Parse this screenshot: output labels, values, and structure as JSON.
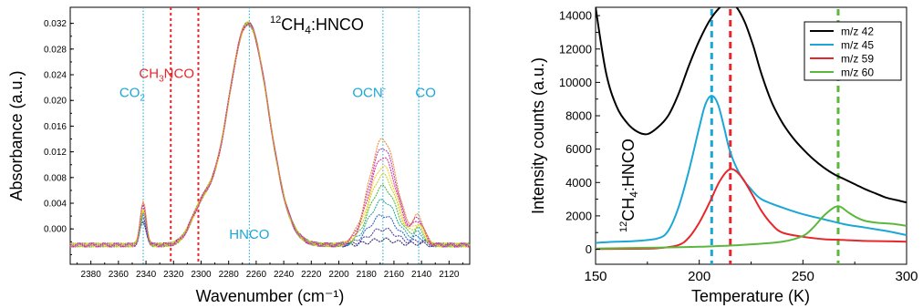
{
  "colors": {
    "blue": "#1aa7d8",
    "red": "#e8262b",
    "black": "#000000",
    "green": "#5cb83c",
    "darkred": "#d1161f"
  },
  "chart_data": [
    {
      "type": "line",
      "title": "12CH4:HNCO",
      "title_parts": {
        "sup": "12",
        "main1": "CH",
        "sub": "4",
        "main2": ":HNCO"
      },
      "xlabel": "Wavenumber (cm⁻¹)",
      "ylabel": "Absorbance (a.u.)",
      "xlim": [
        2395,
        2105
      ],
      "ylim": [
        -0.0055,
        0.0345
      ],
      "x_inverted": true,
      "grid": false,
      "xticks": [
        2380,
        2360,
        2340,
        2320,
        2300,
        2280,
        2260,
        2240,
        2220,
        2200,
        2180,
        2160,
        2140,
        2120
      ],
      "yticks": [
        0.0,
        0.004,
        0.008,
        0.012,
        0.016,
        0.02,
        0.024,
        0.028,
        0.032
      ],
      "ytick_labels": [
        "0.000",
        "0.004",
        "0.008",
        "0.012",
        "0.016",
        "0.020",
        "0.024",
        "0.028",
        "0.032"
      ],
      "ytick_extra": [
        {
          "value": -0.002,
          "label": ""
        }
      ],
      "reference_lines": [
        {
          "x": 2342,
          "color": "blue",
          "style": "dotted"
        },
        {
          "x": 2322,
          "color": "red",
          "style": "dotted"
        },
        {
          "x": 2302,
          "color": "red",
          "style": "dotted"
        },
        {
          "x": 2265,
          "color": "blue",
          "style": "dotted"
        },
        {
          "x": 2168,
          "color": "blue",
          "style": "dotted"
        },
        {
          "x": 2142,
          "color": "blue",
          "style": "dotted"
        }
      ],
      "annotations": [
        {
          "text": "CO",
          "sub": "2",
          "x": 2350,
          "y": 0.0205,
          "color": "blue"
        },
        {
          "text": "CH",
          "sub": "3",
          "rest": "NCO",
          "x": 2325,
          "y": 0.0235,
          "color": "red"
        },
        {
          "text": "HNCO",
          "x": 2265,
          "y": -0.0015,
          "color": "blue"
        },
        {
          "text": "OCN",
          "sup": "-",
          "x": 2178,
          "y": 0.0205,
          "color": "blue"
        },
        {
          "text": "CO",
          "x": 2137,
          "y": 0.0205,
          "color": "blue"
        }
      ],
      "series": [
        {
          "color": "#2a2a6a",
          "scale": 0.05,
          "base": 0.0335
        },
        {
          "color": "#4f3fa0",
          "scale": 0.15,
          "base": 0.0335
        },
        {
          "color": "#2c66c8",
          "scale": 0.28,
          "base": 0.0335
        },
        {
          "color": "#26a8a0",
          "scale": 0.42,
          "base": 0.0335
        },
        {
          "color": "#54b848",
          "scale": 0.55,
          "base": 0.0335
        },
        {
          "color": "#c8d21e",
          "scale": 0.66,
          "base": 0.0335
        },
        {
          "color": "#f4d020",
          "scale": 0.74,
          "base": 0.0335
        },
        {
          "color": "#e0309a",
          "scale": 0.83,
          "base": 0.0335
        },
        {
          "color": "#b040c0",
          "scale": 0.92,
          "base": 0.0335
        },
        {
          "color": "#f08a30",
          "scale": 1.0,
          "base": 0.0335
        }
      ],
      "peaks": {
        "co2": {
          "x": 2342,
          "amp": 0.0065,
          "w": 2.2
        },
        "hnco": {
          "x": 2266,
          "amp": 0.0345,
          "w": 15
        },
        "shoulder": {
          "x": 2300,
          "amp": 0.0045,
          "w": 8
        },
        "ocn": {
          "x": 2168,
          "amp": 0.0165,
          "w": 10
        },
        "co": {
          "x": 2142,
          "amp": 0.004,
          "w": 4
        },
        "baseline": -0.0025
      }
    },
    {
      "type": "line",
      "xlabel": "Temperature (K)",
      "ylabel": "Intensity counts (a.u.)",
      "inner_label": {
        "sup": "12",
        "main1": "CH",
        "sub": "4",
        "main2": ":HNCO"
      },
      "xlim": [
        150,
        300
      ],
      "ylim": [
        -900,
        14500
      ],
      "grid": false,
      "xticks": [
        150,
        200,
        250,
        300
      ],
      "yticks": [
        0,
        2000,
        4000,
        6000,
        8000,
        10000,
        12000,
        14000
      ],
      "legend_position": "top-right",
      "legend": [
        "m/z 42",
        "m/z 45",
        "m/z 59",
        "m/z 60"
      ],
      "reference_lines": [
        {
          "x": 206,
          "color": "blue",
          "style": "dashed"
        },
        {
          "x": 215,
          "color": "red",
          "style": "dashed"
        },
        {
          "x": 267,
          "color": "green",
          "style": "dashed"
        }
      ],
      "series": [
        {
          "name": "m/z 42",
          "color": "black",
          "x": [
            150,
            155,
            160,
            165,
            170,
            175,
            180,
            185,
            190,
            195,
            200,
            205,
            210,
            214,
            218,
            222,
            226,
            230,
            235,
            240,
            245,
            250,
            255,
            260,
            265,
            270,
            275,
            280,
            285,
            290,
            295,
            300
          ],
          "y": [
            14500,
            10600,
            8600,
            7600,
            7050,
            6900,
            7300,
            8000,
            9300,
            11000,
            12500,
            13700,
            14500,
            14800,
            14500,
            13600,
            12200,
            10500,
            8800,
            7600,
            6700,
            6000,
            5400,
            4900,
            4500,
            4200,
            3900,
            3600,
            3350,
            3100,
            2950,
            2800
          ]
        },
        {
          "name": "m/z 45",
          "color": "blue",
          "x": [
            150,
            160,
            170,
            180,
            185,
            190,
            195,
            200,
            203,
            206,
            209,
            212,
            215,
            220,
            225,
            230,
            240,
            250,
            260,
            270,
            280,
            290,
            300
          ],
          "y": [
            380,
            450,
            500,
            650,
            1100,
            2500,
            4700,
            7300,
            8700,
            9200,
            8700,
            7300,
            5800,
            4400,
            3600,
            3000,
            2500,
            2100,
            1800,
            1500,
            1300,
            1100,
            850
          ]
        },
        {
          "name": "m/z 59",
          "color": "red",
          "x": [
            150,
            170,
            180,
            190,
            195,
            200,
            205,
            210,
            215,
            220,
            225,
            230,
            235,
            240,
            250,
            260,
            270,
            280,
            290,
            300
          ],
          "y": [
            20,
            30,
            60,
            250,
            700,
            1600,
            2800,
            4100,
            4800,
            4400,
            3400,
            2300,
            1500,
            1000,
            750,
            600,
            550,
            500,
            480,
            450
          ]
        },
        {
          "name": "m/z 60",
          "color": "green",
          "x": [
            150,
            180,
            200,
            220,
            240,
            250,
            255,
            260,
            265,
            268,
            272,
            276,
            280,
            285,
            290,
            295,
            300
          ],
          "y": [
            40,
            100,
            150,
            250,
            450,
            800,
            1300,
            2000,
            2500,
            2550,
            2200,
            1900,
            1700,
            1600,
            1550,
            1500,
            1400
          ]
        }
      ]
    }
  ]
}
